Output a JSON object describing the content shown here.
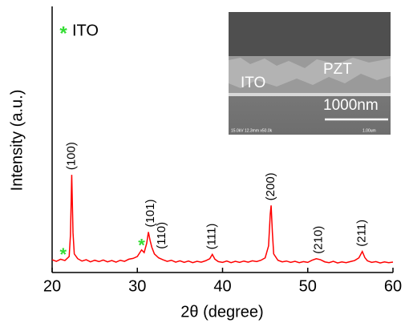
{
  "chart_data": {
    "type": "line",
    "xlabel": "2θ  (degree)",
    "ylabel": "Intensity  (a.u.)",
    "xlim": [
      20,
      60
    ],
    "xticks": [
      20,
      30,
      40,
      50,
      60
    ],
    "ylim": [
      0,
      100
    ],
    "series": [
      {
        "name": "PZT",
        "color": "#ff0000",
        "x": [
          20,
          20.5,
          21,
          21.5,
          22,
          22.15,
          22.3,
          22.45,
          22.6,
          23,
          23.5,
          24,
          24.5,
          25,
          25.5,
          26,
          26.5,
          27,
          27.5,
          28,
          28.5,
          29,
          29.5,
          30,
          30.5,
          30.8,
          31.1,
          31.3,
          31.5,
          31.7,
          32,
          32.5,
          33,
          33.5,
          34,
          34.5,
          35,
          35.5,
          36,
          36.5,
          37,
          37.5,
          38,
          38.5,
          38.8,
          39.1,
          39.5,
          40,
          40.5,
          41,
          41.5,
          42,
          42.5,
          43,
          43.5,
          44,
          44.5,
          45,
          45.4,
          45.6,
          45.7,
          45.85,
          46,
          46.5,
          47,
          47.5,
          48,
          48.5,
          49,
          49.5,
          50,
          50.5,
          51,
          51.5,
          52,
          52.5,
          53,
          53.5,
          54,
          54.5,
          55,
          55.5,
          56,
          56.4,
          56.7,
          57,
          57.5,
          58,
          58.5,
          59,
          59.5,
          60
        ],
        "values": [
          4.8,
          4.2,
          5.0,
          4.5,
          6.0,
          14,
          36.7,
          15,
          7,
          5.2,
          4.3,
          4.8,
          4.0,
          4.6,
          4.1,
          4.7,
          4.0,
          4.5,
          3.9,
          4.6,
          4.2,
          5.0,
          5.3,
          6.0,
          8.5,
          7.5,
          11,
          15.2,
          12,
          9.5,
          7.0,
          5.5,
          4.8,
          4.2,
          4.6,
          3.9,
          4.4,
          3.8,
          4.3,
          3.7,
          4.2,
          3.9,
          4.4,
          5.2,
          6.8,
          5.0,
          4.1,
          3.8,
          4.3,
          3.7,
          4.2,
          3.8,
          4.3,
          3.9,
          4.4,
          4.1,
          4.6,
          5.5,
          10,
          22,
          25.2,
          15,
          7,
          4.6,
          4.0,
          4.3,
          3.8,
          4.2,
          3.7,
          4.1,
          3.8,
          4.6,
          5.2,
          4.8,
          4.0,
          3.7,
          4.2,
          3.6,
          4.0,
          3.7,
          4.1,
          4.5,
          5.5,
          7.9,
          5.6,
          4.4,
          3.8,
          4.1,
          3.6,
          4.0,
          3.7,
          3.9
        ]
      }
    ],
    "annotations": [
      {
        "text": "(100)",
        "x": 22.3
      },
      {
        "text": "(101)",
        "x": 31.6
      },
      {
        "text": "(110)",
        "x": 32.9
      },
      {
        "text": "(111)",
        "x": 38.8
      },
      {
        "text": "(200)",
        "x": 45.7
      },
      {
        "text": "(210)",
        "x": 51.3
      },
      {
        "text": "(211)",
        "x": 56.4
      }
    ],
    "markers": {
      "symbol": "*",
      "name": "ITO",
      "color": "#33dd33",
      "x": [
        21.3,
        30.5
      ]
    },
    "inset": {
      "labels": [
        "PZT",
        "ITO"
      ],
      "scale_bar": "1000nm",
      "info": "15.0kV 12.3mm x50.0k",
      "info_scale": "1.00um"
    }
  }
}
